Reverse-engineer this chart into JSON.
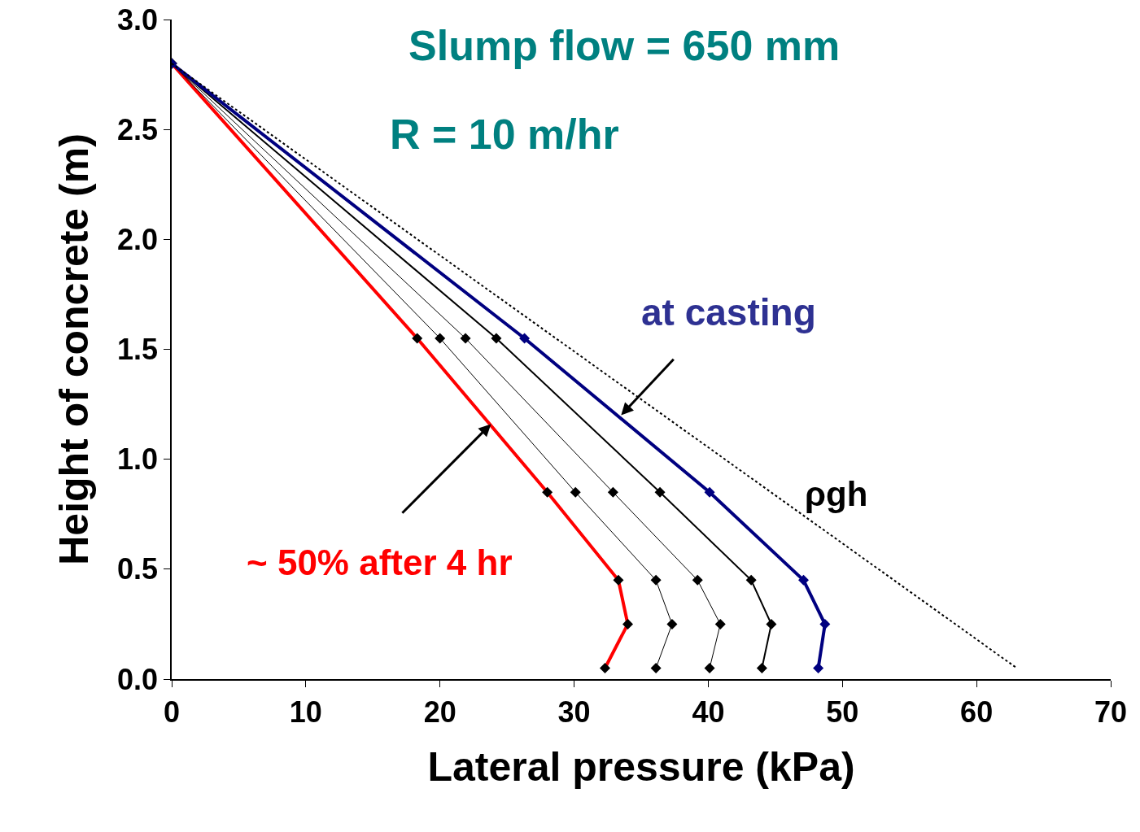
{
  "chart_data": {
    "type": "line",
    "xlabel": "Lateral pressure (kPa)",
    "ylabel": "Height of concrete (m)",
    "xlim": [
      0,
      70
    ],
    "xticks": [
      0,
      10,
      20,
      30,
      40,
      50,
      60,
      70
    ],
    "ylim": [
      0,
      3
    ],
    "yticks": [
      {
        "value": 0,
        "label": "0.0"
      },
      {
        "value": 0.5,
        "label": "0.5"
      },
      {
        "value": 1,
        "label": "1.0"
      },
      {
        "value": 1.5,
        "label": "1.5"
      },
      {
        "value": 2,
        "label": "2.0"
      },
      {
        "value": 2.5,
        "label": "2.5"
      },
      {
        "value": 3,
        "label": "3.0"
      }
    ],
    "grid": false,
    "line_style": "solid",
    "series": [
      {
        "color": "#ff0000",
        "marker": "diamond",
        "x": [
          0,
          18.3,
          28.0,
          33.3,
          34.0,
          32.3
        ],
        "values": [
          2.8,
          1.55,
          0.85,
          0.45,
          0.25,
          0.05
        ]
      },
      {
        "color": "#000000",
        "marker": "diamond",
        "x": [
          0,
          20.0,
          30.1,
          36.1,
          37.3,
          36.1
        ],
        "values": [
          2.8,
          1.55,
          0.85,
          0.45,
          0.25,
          0.05
        ]
      },
      {
        "color": "#000000",
        "marker": "diamond",
        "x": [
          0,
          21.9,
          32.9,
          39.2,
          40.9,
          40.1
        ],
        "values": [
          2.8,
          1.55,
          0.85,
          0.45,
          0.25,
          0.05
        ]
      },
      {
        "color": "#000000",
        "marker": "diamond",
        "x": [
          0,
          24.2,
          36.4,
          43.2,
          44.7,
          44.0
        ],
        "values": [
          2.8,
          1.55,
          0.85,
          0.45,
          0.25,
          0.05
        ]
      },
      {
        "color": "#000080",
        "marker": "diamond",
        "x": [
          0,
          26.3,
          40.1,
          47.1,
          48.7,
          48.2
        ],
        "values": [
          2.8,
          1.55,
          0.85,
          0.45,
          0.25,
          0.05
        ]
      },
      {
        "color": "#000000",
        "x": [
          0,
          63.0
        ],
        "values": [
          2.8,
          0.05
        ],
        "line_style": "dotted"
      }
    ],
    "annotations": [
      "Slump flow = 650 mm",
      "R = 10 m/hr",
      {
        "text": "at casting",
        "x": 33.5,
        "y": 1.2
      },
      "ρgh",
      {
        "text": "~ 50% after 4 hr",
        "x": 23.8,
        "y": 1.16
      }
    ]
  }
}
